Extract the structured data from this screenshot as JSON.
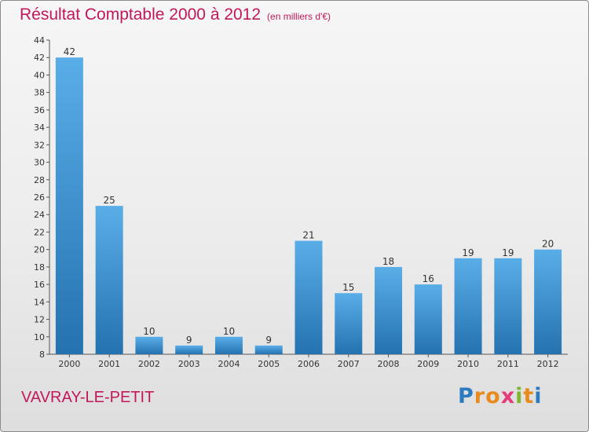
{
  "header": {
    "title": "Résultat Comptable 2000 à 2012",
    "unit": "(en milliers d'€)"
  },
  "footer": {
    "place": "VAVRAY-LE-PETIT",
    "logo": "Proxiti"
  },
  "colors": {
    "title": "#c2185b",
    "bar_light": "#5aaee8",
    "bar_dark": "#2472b0"
  },
  "chart_data": {
    "type": "bar",
    "title": "Résultat Comptable 2000 à 2012",
    "subtitle": "(en milliers d'€)",
    "xlabel": "",
    "ylabel": "",
    "categories": [
      "2000",
      "2001",
      "2002",
      "2003",
      "2004",
      "2005",
      "2006",
      "2007",
      "2008",
      "2009",
      "2010",
      "2011",
      "2012"
    ],
    "values": [
      42,
      25,
      10,
      9,
      10,
      9,
      21,
      15,
      18,
      16,
      19,
      19,
      20
    ],
    "ylim": [
      8,
      44
    ],
    "yticks": [
      8,
      10,
      12,
      14,
      16,
      18,
      20,
      22,
      24,
      26,
      28,
      30,
      32,
      34,
      36,
      38,
      40,
      42,
      44
    ],
    "grid": false,
    "legend": "none"
  }
}
